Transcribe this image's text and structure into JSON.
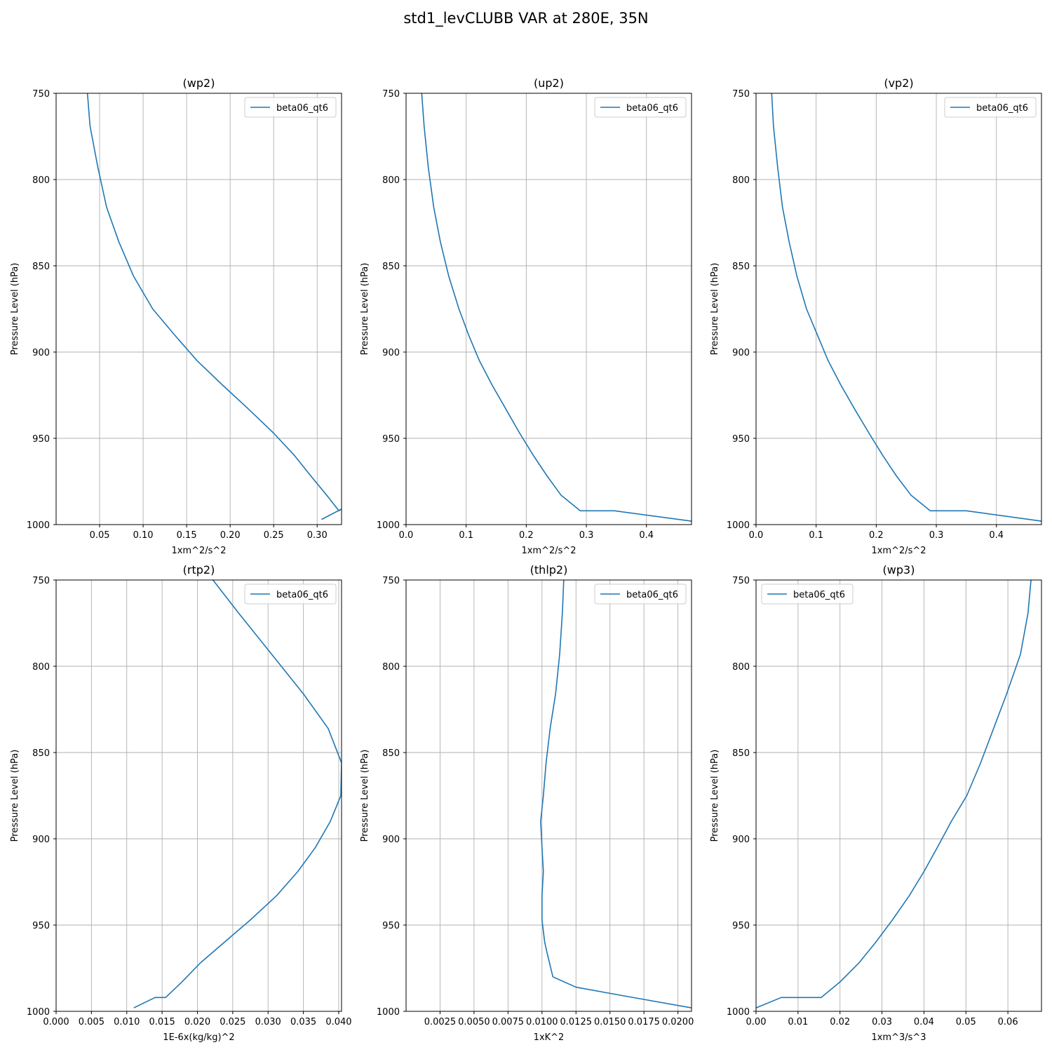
{
  "figure": {
    "title": "std1_levCLUBB VAR at 280E, 35N"
  },
  "colors": {
    "series": "#1f77b4",
    "grid": "#b0b0b0",
    "axes": "#000000"
  },
  "chart_data": [
    {
      "type": "line",
      "title": "(wp2)",
      "xlabel": "1xm^2/s^2",
      "ylabel": "Pressure Level (hPa)",
      "xlim": [
        0.0,
        0.328
      ],
      "ylim": [
        1000,
        750
      ],
      "y_inverted": true,
      "xticks": [
        0.05,
        0.1,
        0.15,
        0.2,
        0.25,
        0.3
      ],
      "xtick_labels": [
        "0.05",
        "0.10",
        "0.15",
        "0.20",
        "0.25",
        "0.30"
      ],
      "yticks": [
        750,
        800,
        850,
        900,
        950,
        1000
      ],
      "ytick_labels": [
        "750",
        "800",
        "850",
        "900",
        "950",
        "1000"
      ],
      "grid": true,
      "legend": {
        "position": "upper-right",
        "entries": [
          "beta06_qt6"
        ]
      },
      "series": [
        {
          "name": "beta06_qt6",
          "x": [
            0.036,
            0.039,
            0.048,
            0.058,
            0.072,
            0.089,
            0.111,
            0.136,
            0.162,
            0.191,
            0.221,
            0.25,
            0.274,
            0.293,
            0.311,
            0.325,
            0.328,
            0.305
          ],
          "y": [
            750,
            769,
            793,
            816,
            836,
            856,
            875,
            890,
            905,
            919,
            933,
            947,
            960,
            972,
            983,
            992,
            991,
            997
          ]
        }
      ]
    },
    {
      "type": "line",
      "title": "(up2)",
      "xlabel": "1xm^2/s^2",
      "ylabel": "Pressure Level (hPa)",
      "xlim": [
        0.0,
        0.475
      ],
      "ylim": [
        1000,
        750
      ],
      "y_inverted": true,
      "xticks": [
        0.0,
        0.1,
        0.2,
        0.3,
        0.4
      ],
      "xtick_labels": [
        "0.0",
        "0.1",
        "0.2",
        "0.3",
        "0.4"
      ],
      "yticks": [
        750,
        800,
        850,
        900,
        950,
        1000
      ],
      "ytick_labels": [
        "750",
        "800",
        "850",
        "900",
        "950",
        "1000"
      ],
      "grid": true,
      "legend": {
        "position": "upper-right",
        "entries": [
          "beta06_qt6"
        ]
      },
      "series": [
        {
          "name": "beta06_qt6",
          "x": [
            0.026,
            0.03,
            0.037,
            0.046,
            0.057,
            0.071,
            0.088,
            0.104,
            0.122,
            0.143,
            0.166,
            0.189,
            0.212,
            0.235,
            0.258,
            0.29,
            0.347,
            0.475
          ],
          "y": [
            750,
            769,
            793,
            816,
            836,
            856,
            875,
            890,
            905,
            919,
            933,
            947,
            960,
            972,
            983,
            992,
            992,
            998
          ]
        }
      ]
    },
    {
      "type": "line",
      "title": "(vp2)",
      "xlabel": "1xm^2/s^2",
      "ylabel": "Pressure Level (hPa)",
      "xlim": [
        0.0,
        0.475
      ],
      "ylim": [
        1000,
        750
      ],
      "y_inverted": true,
      "xticks": [
        0.0,
        0.1,
        0.2,
        0.3,
        0.4
      ],
      "xtick_labels": [
        "0.0",
        "0.1",
        "0.2",
        "0.3",
        "0.4"
      ],
      "yticks": [
        750,
        800,
        850,
        900,
        950,
        1000
      ],
      "ytick_labels": [
        "750",
        "800",
        "850",
        "900",
        "950",
        "1000"
      ],
      "grid": true,
      "legend": {
        "position": "upper-right",
        "entries": [
          "beta06_qt6"
        ]
      },
      "series": [
        {
          "name": "beta06_qt6",
          "x": [
            0.026,
            0.029,
            0.036,
            0.044,
            0.055,
            0.068,
            0.084,
            0.102,
            0.12,
            0.141,
            0.164,
            0.188,
            0.211,
            0.234,
            0.258,
            0.29,
            0.35,
            0.475
          ],
          "y": [
            750,
            769,
            793,
            816,
            836,
            856,
            875,
            890,
            905,
            919,
            933,
            947,
            960,
            972,
            983,
            992,
            992,
            998
          ]
        }
      ]
    },
    {
      "type": "line",
      "title": "(rtp2)",
      "xlabel": "1E-6x(kg/kg)^2",
      "ylabel": "Pressure Level (hPa)",
      "xlim": [
        0.0,
        0.0404
      ],
      "ylim": [
        1000,
        750
      ],
      "y_inverted": true,
      "xticks": [
        0.0,
        0.005,
        0.01,
        0.015,
        0.02,
        0.025,
        0.03,
        0.035,
        0.04
      ],
      "xtick_labels": [
        "0.000",
        "0.005",
        "0.010",
        "0.015",
        "0.020",
        "0.025",
        "0.030",
        "0.035",
        "0.040"
      ],
      "yticks": [
        750,
        800,
        850,
        900,
        950,
        1000
      ],
      "ytick_labels": [
        "750",
        "800",
        "850",
        "900",
        "950",
        "1000"
      ],
      "grid": true,
      "legend": {
        "position": "upper-right",
        "entries": [
          "beta06_qt6"
        ]
      },
      "series": [
        {
          "name": "beta06_qt6",
          "x": [
            0.0222,
            0.0258,
            0.0305,
            0.035,
            0.0385,
            0.0404,
            0.0403,
            0.0388,
            0.0367,
            0.0342,
            0.0312,
            0.0275,
            0.0238,
            0.0204,
            0.0178,
            0.0155,
            0.014,
            0.011
          ],
          "y": [
            750,
            769,
            793,
            816,
            836,
            856,
            875,
            890,
            905,
            919,
            933,
            947,
            960,
            972,
            983,
            992,
            992,
            998
          ]
        }
      ]
    },
    {
      "type": "line",
      "title": "(thlp2)",
      "xlabel": "1xK^2",
      "ylabel": "Pressure Level (hPa)",
      "xlim": [
        0.0,
        0.021
      ],
      "ylim": [
        1000,
        750
      ],
      "y_inverted": true,
      "xticks": [
        0.0025,
        0.005,
        0.0075,
        0.01,
        0.0125,
        0.015,
        0.0175,
        0.02
      ],
      "xtick_labels": [
        "0.0025",
        "0.0050",
        "0.0075",
        "0.0100",
        "0.0125",
        "0.0150",
        "0.0175",
        "0.0200"
      ],
      "yticks": [
        750,
        800,
        850,
        900,
        950,
        1000
      ],
      "ytick_labels": [
        "750",
        "800",
        "850",
        "900",
        "950",
        "1000"
      ],
      "grid": true,
      "legend": {
        "position": "upper-right",
        "entries": [
          "beta06_qt6"
        ]
      },
      "series": [
        {
          "name": "beta06_qt6",
          "x": [
            0.0116,
            0.0115,
            0.0113,
            0.011,
            0.0106,
            0.0103,
            0.0101,
            0.0099,
            0.01,
            0.0101,
            0.01,
            0.01,
            0.0102,
            0.0104,
            0.0108,
            0.0125,
            0.016,
            0.021
          ],
          "y": [
            750,
            769,
            793,
            816,
            836,
            856,
            875,
            890,
            905,
            919,
            933,
            947,
            960,
            967,
            980,
            986,
            991,
            998
          ]
        }
      ]
    },
    {
      "type": "line",
      "title": "(wp3)",
      "xlabel": "1xm^3/s^3",
      "ylabel": "Pressure Level (hPa)",
      "xlim": [
        0.0,
        0.068
      ],
      "ylim": [
        1000,
        750
      ],
      "y_inverted": true,
      "xticks": [
        0.0,
        0.01,
        0.02,
        0.03,
        0.04,
        0.05,
        0.06
      ],
      "xtick_labels": [
        "0.00",
        "0.01",
        "0.02",
        "0.03",
        "0.04",
        "0.05",
        "0.06"
      ],
      "yticks": [
        750,
        800,
        850,
        900,
        950,
        1000
      ],
      "ytick_labels": [
        "750",
        "800",
        "850",
        "900",
        "950",
        "1000"
      ],
      "grid": true,
      "legend": {
        "position": "upper-left",
        "entries": [
          "beta06_qt6"
        ]
      },
      "series": [
        {
          "name": "beta06_qt6",
          "x": [
            0.0655,
            0.0648,
            0.063,
            0.0597,
            0.0566,
            0.0535,
            0.0502,
            0.0465,
            0.0432,
            0.04,
            0.0365,
            0.0325,
            0.0285,
            0.0245,
            0.02,
            0.0155,
            0.006,
            0.0
          ],
          "y": [
            750,
            769,
            793,
            816,
            836,
            856,
            875,
            890,
            905,
            919,
            933,
            947,
            960,
            972,
            983,
            992,
            992,
            998
          ]
        }
      ]
    }
  ]
}
